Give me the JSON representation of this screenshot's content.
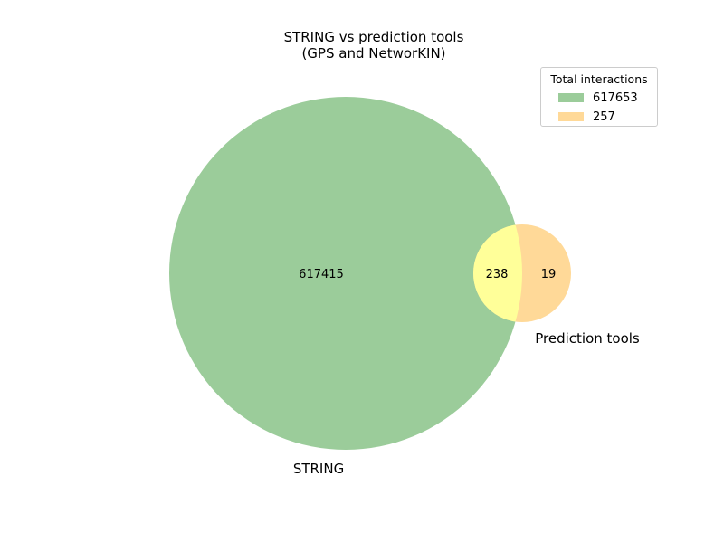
{
  "title": {
    "line1": "STRING vs prediction tools",
    "line2": "(GPS and NetworKIN)"
  },
  "legend": {
    "title": "Total interactions",
    "entries": [
      {
        "label": "617653",
        "color": "#9bcc9a"
      },
      {
        "label": "257",
        "color": "#ffd998"
      }
    ]
  },
  "sets": {
    "left": {
      "name": "STRING",
      "only_count": "617415",
      "color": "#9bcc9a"
    },
    "right": {
      "name": "Prediction tools",
      "only_count": "19",
      "color": "#ffd998"
    },
    "intersection": {
      "count": "238",
      "color": "#ffff99"
    }
  },
  "chart_data": {
    "type": "venn2",
    "title": "STRING vs prediction tools\n(GPS and NetworKIN)",
    "set_labels": [
      "STRING",
      "Prediction tools"
    ],
    "subsets": {
      "STRING_only": 617415,
      "Prediction_only": 19,
      "both": 238
    },
    "totals": {
      "STRING": 617653,
      "Prediction tools": 257
    }
  }
}
